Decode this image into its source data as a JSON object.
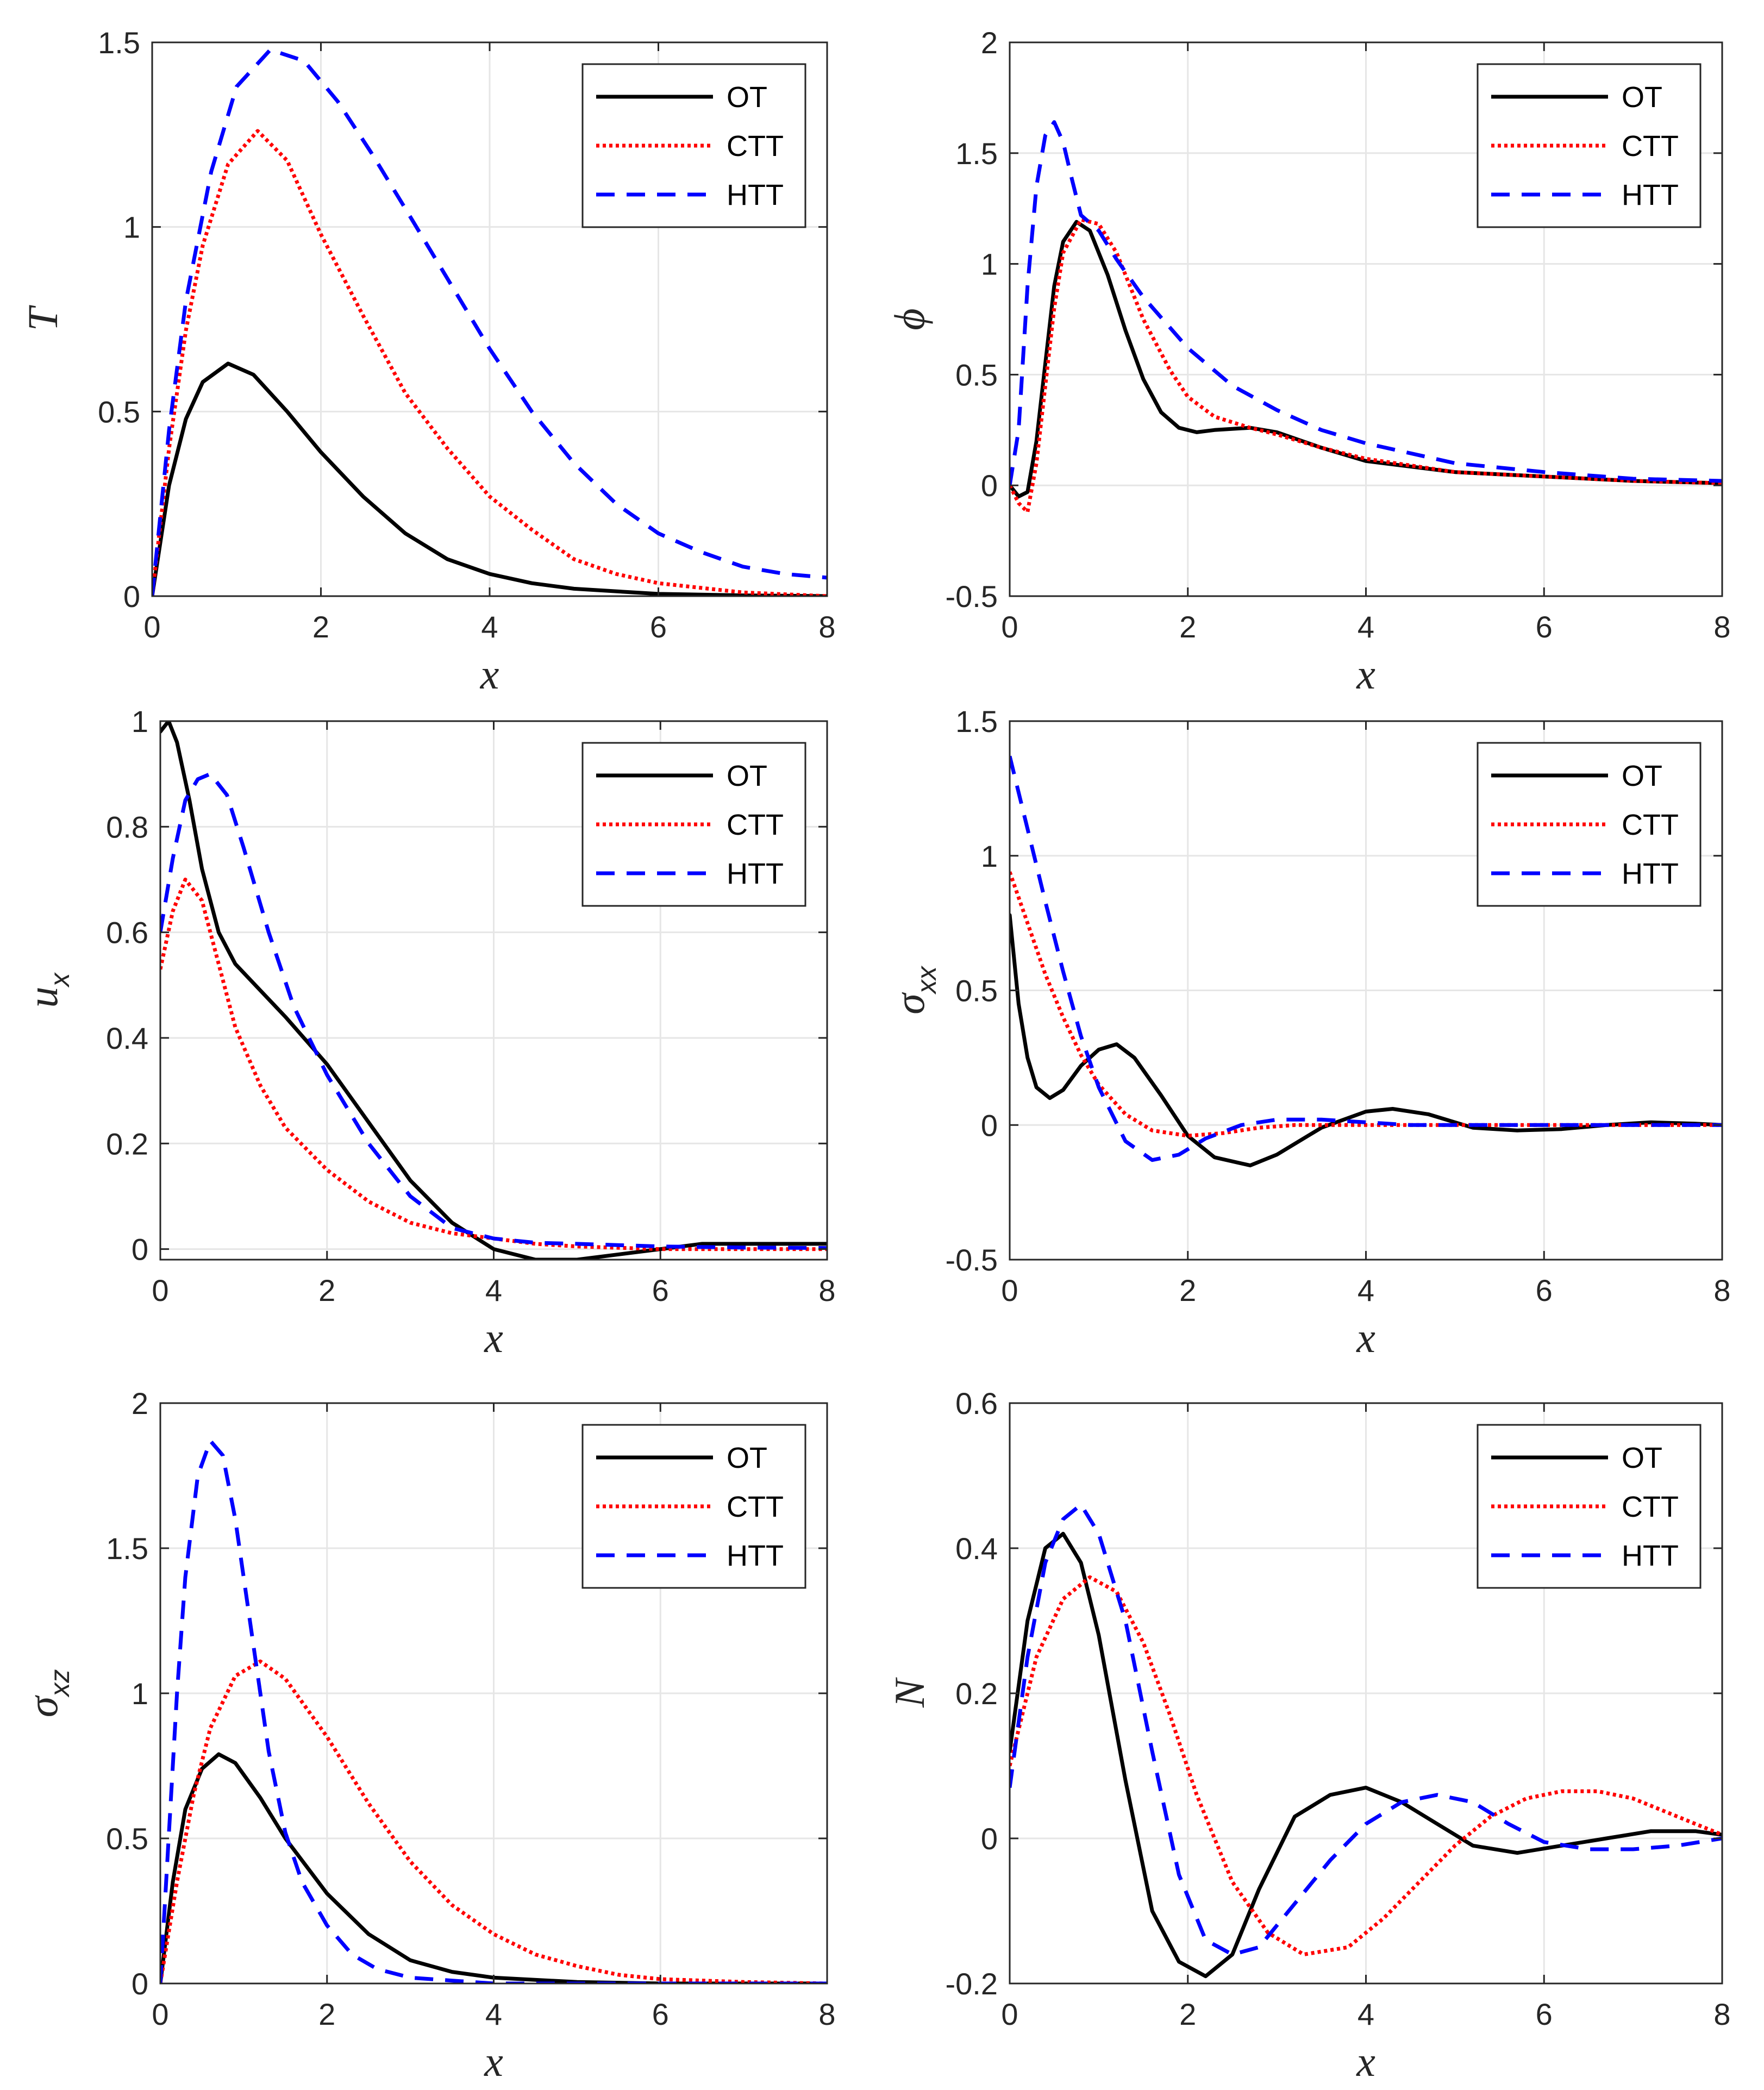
{
  "legend": [
    "OT",
    "CTT",
    "HTT"
  ],
  "series_style": {
    "OT": {
      "color": "#000000",
      "dash": "solid"
    },
    "CTT": {
      "color": "#ff0000",
      "dash": "dotted"
    },
    "HTT": {
      "color": "#0000ff",
      "dash": "dashed"
    }
  },
  "chart_data": [
    {
      "type": "line",
      "id": "T",
      "xlabel": "x",
      "ylabel": "T",
      "ylabel_sub": "",
      "xlim": [
        0,
        8
      ],
      "ylim": [
        0,
        1.5
      ],
      "xticks": [
        0,
        2,
        4,
        6,
        8
      ],
      "xtick_labels": [
        "0",
        "2",
        "4",
        "6",
        "8"
      ],
      "yticks": [
        0,
        0.5,
        1,
        1.5
      ],
      "ytick_labels": [
        "0",
        "0.5",
        "1",
        "1.5"
      ],
      "grid": true,
      "legend_position": "top-right",
      "series": [
        {
          "name": "OT",
          "x": [
            0,
            0.2,
            0.4,
            0.6,
            0.9,
            1.2,
            1.6,
            2.0,
            2.5,
            3.0,
            3.5,
            4.0,
            4.5,
            5.0,
            6.0,
            7.0,
            8.0
          ],
          "y": [
            0,
            0.3,
            0.48,
            0.58,
            0.63,
            0.6,
            0.5,
            0.39,
            0.27,
            0.17,
            0.1,
            0.06,
            0.035,
            0.02,
            0.006,
            0.002,
            0
          ]
        },
        {
          "name": "CTT",
          "x": [
            0,
            0.2,
            0.4,
            0.6,
            0.9,
            1.25,
            1.6,
            2.0,
            2.5,
            3.0,
            3.5,
            4.0,
            4.5,
            5.0,
            5.5,
            6.0,
            7.0,
            8.0
          ],
          "y": [
            0,
            0.4,
            0.72,
            0.95,
            1.17,
            1.26,
            1.18,
            0.98,
            0.76,
            0.55,
            0.4,
            0.27,
            0.18,
            0.1,
            0.06,
            0.035,
            0.01,
            0
          ]
        },
        {
          "name": "HTT",
          "x": [
            0,
            0.2,
            0.4,
            0.7,
            1.0,
            1.4,
            1.8,
            2.2,
            2.6,
            3.0,
            3.5,
            4.0,
            4.5,
            5.0,
            5.5,
            6.0,
            6.5,
            7.0,
            7.5,
            8.0
          ],
          "y": [
            0,
            0.45,
            0.8,
            1.15,
            1.38,
            1.48,
            1.45,
            1.34,
            1.2,
            1.05,
            0.86,
            0.67,
            0.5,
            0.36,
            0.25,
            0.17,
            0.12,
            0.08,
            0.06,
            0.05
          ]
        }
      ]
    },
    {
      "type": "line",
      "id": "phi",
      "xlabel": "x",
      "ylabel": "ϕ",
      "ylabel_sub": "",
      "xlim": [
        0,
        8
      ],
      "ylim": [
        -0.5,
        2
      ],
      "xticks": [
        0,
        2,
        4,
        6,
        8
      ],
      "xtick_labels": [
        "0",
        "2",
        "4",
        "6",
        "8"
      ],
      "yticks": [
        -0.5,
        0,
        0.5,
        1,
        1.5,
        2
      ],
      "ytick_labels": [
        "-0.5",
        "0",
        "0.5",
        "1",
        "1.5",
        "2"
      ],
      "grid": true,
      "legend_position": "top-right",
      "series": [
        {
          "name": "OT",
          "x": [
            0,
            0.1,
            0.2,
            0.3,
            0.4,
            0.5,
            0.6,
            0.75,
            0.9,
            1.1,
            1.3,
            1.5,
            1.7,
            1.9,
            2.1,
            2.3,
            2.7,
            3.0,
            3.5,
            4.0,
            5.0,
            6.0,
            7.0,
            8.0
          ],
          "y": [
            0,
            -0.05,
            -0.03,
            0.2,
            0.55,
            0.9,
            1.1,
            1.19,
            1.15,
            0.95,
            0.7,
            0.48,
            0.33,
            0.26,
            0.24,
            0.25,
            0.26,
            0.24,
            0.17,
            0.11,
            0.06,
            0.04,
            0.02,
            0.01
          ]
        },
        {
          "name": "CTT",
          "x": [
            0,
            0.1,
            0.2,
            0.3,
            0.4,
            0.5,
            0.6,
            0.8,
            1.0,
            1.2,
            1.5,
            1.8,
            2.0,
            2.3,
            2.7,
            3.0,
            3.5,
            4.0,
            5.0,
            6.0,
            7.0,
            8.0
          ],
          "y": [
            0,
            -0.08,
            -0.12,
            0.1,
            0.45,
            0.8,
            1.05,
            1.2,
            1.18,
            1.05,
            0.75,
            0.52,
            0.4,
            0.31,
            0.26,
            0.23,
            0.17,
            0.12,
            0.06,
            0.04,
            0.02,
            0.01
          ]
        },
        {
          "name": "HTT",
          "x": [
            0,
            0.1,
            0.2,
            0.3,
            0.4,
            0.5,
            0.6,
            0.7,
            0.8,
            1.0,
            1.2,
            1.5,
            2.0,
            2.5,
            3.0,
            3.5,
            4.0,
            5.0,
            6.0,
            7.0,
            8.0
          ],
          "y": [
            0,
            0.25,
            0.9,
            1.35,
            1.58,
            1.64,
            1.55,
            1.38,
            1.22,
            1.15,
            1.02,
            0.85,
            0.62,
            0.45,
            0.34,
            0.25,
            0.19,
            0.1,
            0.06,
            0.03,
            0.02
          ]
        }
      ]
    },
    {
      "type": "line",
      "id": "ux",
      "xlabel": "x",
      "ylabel": "u",
      "ylabel_sub": "x",
      "xlim": [
        0,
        8
      ],
      "ylim": [
        -0.02,
        1
      ],
      "xticks": [
        0,
        2,
        4,
        6,
        8
      ],
      "xtick_labels": [
        "0",
        "2",
        "4",
        "6",
        "8"
      ],
      "yticks": [
        0,
        0.2,
        0.4,
        0.6,
        0.8,
        1
      ],
      "ytick_labels": [
        "0",
        "0.2",
        "0.4",
        "0.6",
        "0.8",
        "1"
      ],
      "grid": true,
      "legend_position": "top-right",
      "series": [
        {
          "name": "OT",
          "x": [
            0,
            0.1,
            0.2,
            0.35,
            0.5,
            0.7,
            0.9,
            1.2,
            1.5,
            2.0,
            2.5,
            3.0,
            3.5,
            4.0,
            4.5,
            5.0,
            5.5,
            6.0,
            6.5,
            7.0,
            7.5,
            8.0
          ],
          "y": [
            0.98,
            1.0,
            0.96,
            0.85,
            0.72,
            0.6,
            0.54,
            0.49,
            0.44,
            0.35,
            0.24,
            0.13,
            0.05,
            0.0,
            -0.02,
            -0.02,
            -0.01,
            0.0,
            0.01,
            0.01,
            0.01,
            0.01
          ]
        },
        {
          "name": "CTT",
          "x": [
            0,
            0.15,
            0.3,
            0.5,
            0.7,
            0.9,
            1.2,
            1.5,
            2.0,
            2.5,
            3.0,
            3.5,
            4.0,
            4.5,
            5.0,
            6.0,
            7.0,
            8.0
          ],
          "y": [
            0.53,
            0.64,
            0.7,
            0.66,
            0.54,
            0.42,
            0.31,
            0.23,
            0.15,
            0.09,
            0.05,
            0.03,
            0.02,
            0.01,
            0.005,
            0.0,
            0.0,
            0.0
          ]
        },
        {
          "name": "HTT",
          "x": [
            0,
            0.15,
            0.3,
            0.45,
            0.6,
            0.8,
            1.0,
            1.3,
            1.6,
            2.0,
            2.5,
            3.0,
            3.5,
            4.0,
            4.5,
            5.0,
            6.0,
            7.0,
            8.0
          ],
          "y": [
            0.6,
            0.74,
            0.85,
            0.89,
            0.9,
            0.86,
            0.76,
            0.6,
            0.46,
            0.33,
            0.2,
            0.1,
            0.04,
            0.02,
            0.012,
            0.01,
            0.005,
            0.003,
            0.002
          ]
        }
      ]
    },
    {
      "type": "line",
      "id": "sxx",
      "xlabel": "x",
      "ylabel": "σ",
      "ylabel_sub": "xx",
      "xlim": [
        0,
        8
      ],
      "ylim": [
        -0.5,
        1.5
      ],
      "xticks": [
        0,
        2,
        4,
        6,
        8
      ],
      "xtick_labels": [
        "0",
        "2",
        "4",
        "6",
        "8"
      ],
      "yticks": [
        -0.5,
        0,
        0.5,
        1,
        1.5
      ],
      "ytick_labels": [
        "-0.5",
        "0",
        "0.5",
        "1",
        "1.5"
      ],
      "grid": true,
      "legend_position": "top-right",
      "series": [
        {
          "name": "OT",
          "x": [
            0,
            0.1,
            0.2,
            0.3,
            0.45,
            0.6,
            0.8,
            1.0,
            1.2,
            1.4,
            1.7,
            2.0,
            2.3,
            2.7,
            3.0,
            3.5,
            4.0,
            4.3,
            4.7,
            5.2,
            5.7,
            6.2,
            6.7,
            7.2,
            7.7,
            8.0
          ],
          "y": [
            0.78,
            0.45,
            0.25,
            0.14,
            0.1,
            0.13,
            0.22,
            0.28,
            0.3,
            0.25,
            0.11,
            -0.04,
            -0.12,
            -0.15,
            -0.11,
            -0.01,
            0.05,
            0.06,
            0.04,
            -0.01,
            -0.02,
            -0.015,
            0.0,
            0.01,
            0.005,
            0.0
          ]
        },
        {
          "name": "CTT",
          "x": [
            0,
            0.2,
            0.4,
            0.6,
            0.8,
            1.0,
            1.3,
            1.6,
            2.0,
            2.4,
            2.8,
            3.2,
            3.6,
            4.0,
            5.0,
            6.0,
            7.0,
            8.0
          ],
          "y": [
            0.94,
            0.75,
            0.56,
            0.4,
            0.26,
            0.15,
            0.04,
            -0.02,
            -0.04,
            -0.03,
            -0.01,
            0.0,
            0.0,
            0.0,
            0.0,
            0.0,
            0.0,
            0.0
          ]
        },
        {
          "name": "HTT",
          "x": [
            0,
            0.2,
            0.4,
            0.6,
            0.8,
            1.0,
            1.3,
            1.6,
            1.9,
            2.2,
            2.6,
            3.0,
            3.5,
            4.0,
            4.5,
            5.0,
            6.0,
            7.0,
            8.0
          ],
          "y": [
            1.37,
            1.1,
            0.83,
            0.57,
            0.33,
            0.14,
            -0.06,
            -0.13,
            -0.11,
            -0.05,
            0.0,
            0.02,
            0.02,
            0.01,
            0.0,
            0.0,
            0.0,
            0.0,
            0.0
          ]
        }
      ]
    },
    {
      "type": "line",
      "id": "sxz",
      "xlabel": "x",
      "ylabel": "σ",
      "ylabel_sub": "xz",
      "xlim": [
        0,
        8
      ],
      "ylim": [
        0,
        2
      ],
      "xticks": [
        0,
        2,
        4,
        6,
        8
      ],
      "xtick_labels": [
        "0",
        "2",
        "4",
        "6",
        "8"
      ],
      "yticks": [
        0,
        0.5,
        1,
        1.5,
        2
      ],
      "ytick_labels": [
        "0",
        "0.5",
        "1",
        "1.5",
        "2"
      ],
      "grid": true,
      "legend_position": "top-right",
      "series": [
        {
          "name": "OT",
          "x": [
            0,
            0.15,
            0.3,
            0.5,
            0.7,
            0.9,
            1.2,
            1.5,
            2.0,
            2.5,
            3.0,
            3.5,
            4.0,
            5.0,
            6.0,
            7.0,
            8.0
          ],
          "y": [
            0,
            0.35,
            0.6,
            0.74,
            0.79,
            0.76,
            0.64,
            0.5,
            0.31,
            0.17,
            0.08,
            0.04,
            0.02,
            0.005,
            0.0,
            0.0,
            0.0
          ]
        },
        {
          "name": "CTT",
          "x": [
            0,
            0.2,
            0.4,
            0.6,
            0.9,
            1.2,
            1.5,
            2.0,
            2.5,
            3.0,
            3.5,
            4.0,
            4.5,
            5.0,
            5.5,
            6.0,
            7.0,
            8.0
          ],
          "y": [
            0,
            0.35,
            0.65,
            0.88,
            1.06,
            1.11,
            1.05,
            0.85,
            0.62,
            0.42,
            0.27,
            0.17,
            0.1,
            0.06,
            0.03,
            0.015,
            0.005,
            0.0
          ]
        },
        {
          "name": "HTT",
          "x": [
            0,
            0.1,
            0.2,
            0.3,
            0.45,
            0.6,
            0.75,
            0.9,
            1.1,
            1.3,
            1.5,
            1.7,
            2.0,
            2.3,
            2.6,
            3.0,
            3.5,
            4.0,
            5.0,
            6.0,
            8.0
          ],
          "y": [
            0,
            0.5,
            1.0,
            1.4,
            1.75,
            1.87,
            1.82,
            1.6,
            1.2,
            0.8,
            0.52,
            0.35,
            0.2,
            0.1,
            0.05,
            0.02,
            0.01,
            0.0,
            0.0,
            0.0,
            0.0
          ]
        }
      ]
    },
    {
      "type": "line",
      "id": "N",
      "xlabel": "x",
      "ylabel": "N",
      "ylabel_sub": "",
      "xlim": [
        0,
        8
      ],
      "ylim": [
        -0.2,
        0.6
      ],
      "xticks": [
        0,
        2,
        4,
        6,
        8
      ],
      "xtick_labels": [
        "0",
        "2",
        "4",
        "6",
        "8"
      ],
      "yticks": [
        -0.2,
        0,
        0.2,
        0.4,
        0.6
      ],
      "ytick_labels": [
        "-0.2",
        "0",
        "0.2",
        "0.4",
        "0.6"
      ],
      "grid": true,
      "legend_position": "top-right",
      "series": [
        {
          "name": "OT",
          "x": [
            0,
            0.2,
            0.4,
            0.6,
            0.8,
            1.0,
            1.3,
            1.6,
            1.9,
            2.2,
            2.5,
            2.8,
            3.2,
            3.6,
            4.0,
            4.4,
            4.8,
            5.2,
            5.7,
            6.2,
            6.7,
            7.2,
            7.7,
            8.0
          ],
          "y": [
            0.12,
            0.3,
            0.4,
            0.42,
            0.38,
            0.28,
            0.08,
            -0.1,
            -0.17,
            -0.19,
            -0.16,
            -0.07,
            0.03,
            0.06,
            0.07,
            0.05,
            0.02,
            -0.01,
            -0.02,
            -0.01,
            0.0,
            0.01,
            0.01,
            0.005
          ]
        },
        {
          "name": "CTT",
          "x": [
            0,
            0.3,
            0.6,
            0.9,
            1.2,
            1.5,
            1.8,
            2.1,
            2.5,
            2.9,
            3.3,
            3.8,
            4.2,
            4.6,
            5.0,
            5.4,
            5.8,
            6.2,
            6.6,
            7.0,
            7.4,
            7.8,
            8.0
          ],
          "y": [
            0.1,
            0.25,
            0.33,
            0.36,
            0.34,
            0.27,
            0.17,
            0.06,
            -0.06,
            -0.13,
            -0.16,
            -0.15,
            -0.11,
            -0.06,
            -0.01,
            0.03,
            0.055,
            0.065,
            0.065,
            0.055,
            0.035,
            0.015,
            0.005
          ]
        },
        {
          "name": "HTT",
          "x": [
            0,
            0.2,
            0.4,
            0.6,
            0.8,
            1.0,
            1.3,
            1.6,
            1.9,
            2.2,
            2.5,
            2.8,
            3.2,
            3.6,
            4.0,
            4.4,
            4.8,
            5.2,
            5.6,
            6.0,
            6.5,
            7.0,
            7.5,
            8.0
          ],
          "y": [
            0.07,
            0.25,
            0.38,
            0.44,
            0.46,
            0.42,
            0.3,
            0.12,
            -0.05,
            -0.14,
            -0.16,
            -0.15,
            -0.09,
            -0.03,
            0.02,
            0.05,
            0.06,
            0.05,
            0.02,
            -0.005,
            -0.015,
            -0.015,
            -0.01,
            0.0
          ]
        }
      ]
    }
  ]
}
